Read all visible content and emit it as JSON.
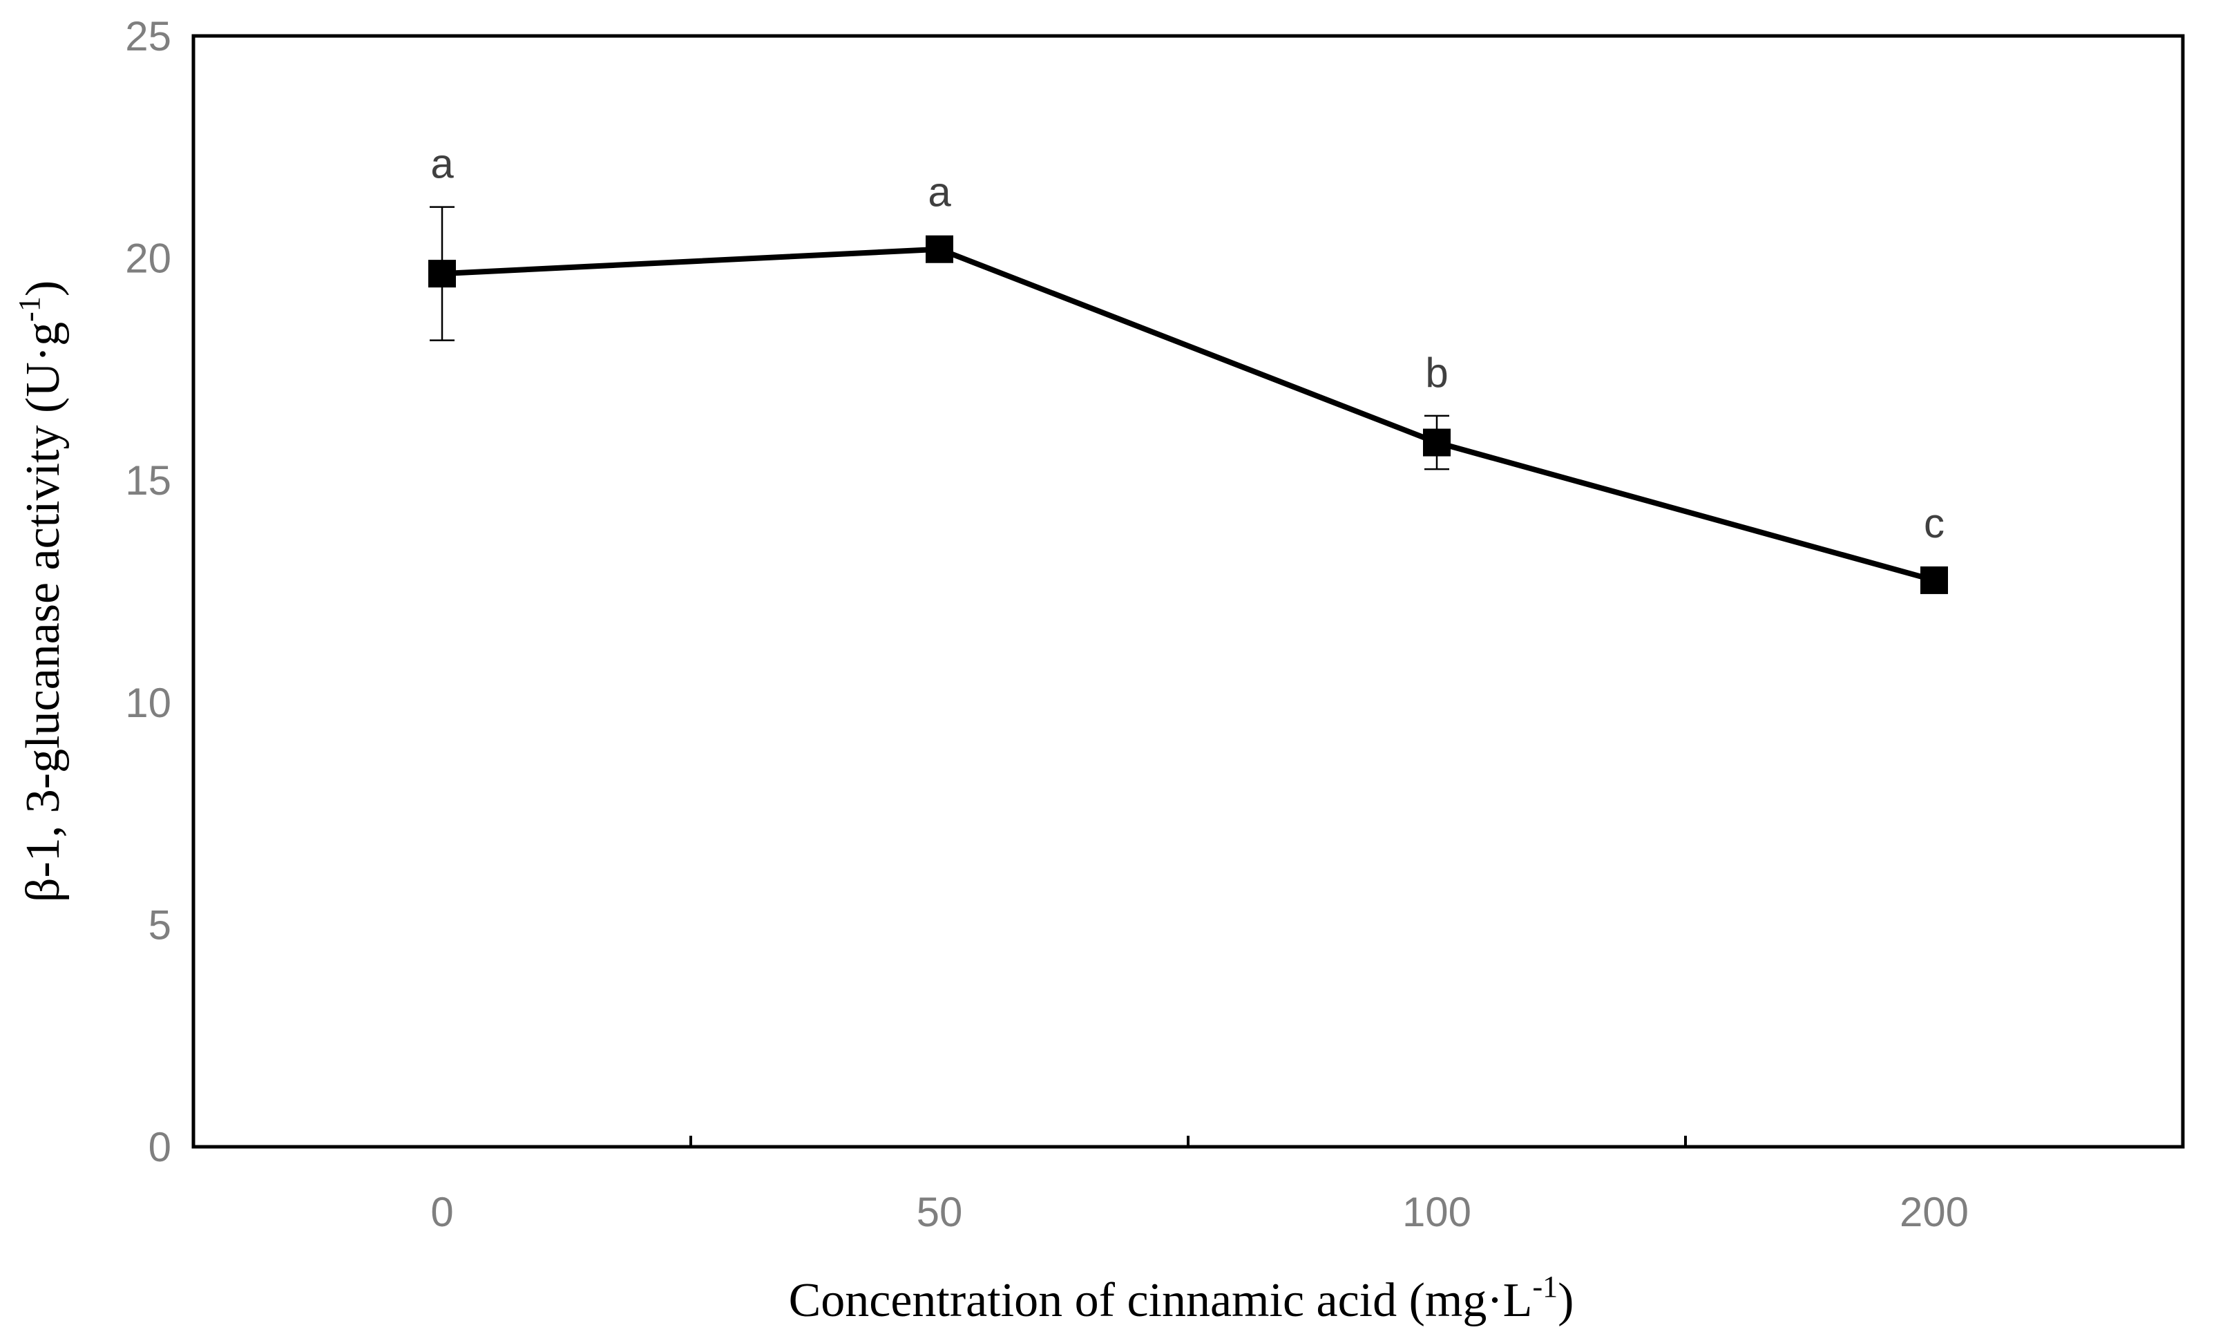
{
  "chart_data": {
    "type": "line",
    "title": "",
    "xlabel": "Concentration of cinnamic acid (mg·L",
    "xlabel_sup": "-1",
    "xlabel_end": ")",
    "ylabel": "β-1, 3-glucanase activity (U·g",
    "ylabel_sup": "-1",
    "ylabel_end": ")",
    "categories": [
      "0",
      "50",
      "100",
      "200"
    ],
    "series": [
      {
        "name": "β-1, 3-glucanase activity",
        "values": [
          19.65,
          20.2,
          15.85,
          12.75
        ],
        "errors": [
          1.5,
          0.1,
          0.6,
          0.1
        ],
        "significance": [
          "a",
          "a",
          "b",
          "c"
        ],
        "color": "#000000",
        "marker": "square"
      }
    ],
    "ylim": [
      0,
      25
    ],
    "yticks": [
      "0",
      "5",
      "10",
      "15",
      "20",
      "25"
    ],
    "grid": false,
    "legend": "none"
  }
}
